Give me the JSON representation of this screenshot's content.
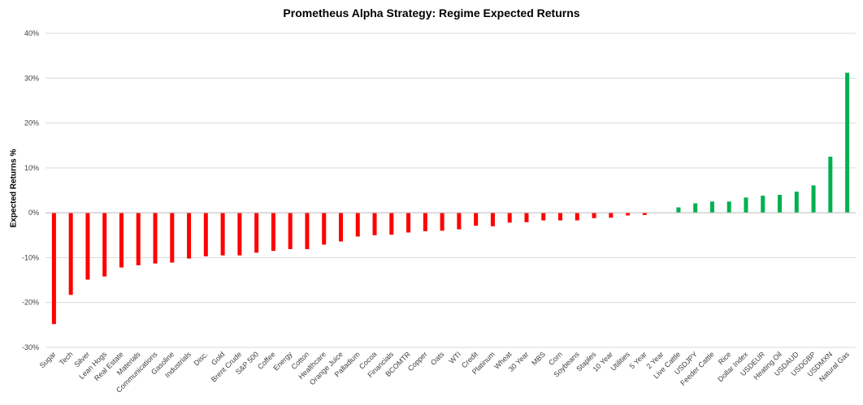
{
  "chart_data": {
    "type": "bar",
    "title": "Prometheus Alpha Strategy: Regime Expected Returns",
    "xlabel": "",
    "ylabel": "Expected Returns %",
    "ylim": [
      -30,
      40
    ],
    "yticks": [
      40,
      30,
      20,
      10,
      0,
      -10,
      -20,
      -30
    ],
    "ytick_format": "%",
    "grid": true,
    "legend": "none",
    "colors": {
      "negative": "#ff0000",
      "positive": "#00b050",
      "grid": "#d9d9d9",
      "axis": "#bfbfbf"
    },
    "categories": [
      "Sugar",
      "Tech",
      "Silver",
      "Lean Hogs",
      "Real Estate",
      "Materials",
      "Communications",
      "Gasoline",
      "Industrials",
      "Disc.",
      "Gold",
      "Brent Crude",
      "S&P 500",
      "Coffee",
      "Energy",
      "Cotton",
      "Healthcare",
      "Orange Juice",
      "Palladium",
      "Cocoa",
      "Financials",
      "BCOMTR",
      "Copper",
      "Oats",
      "WTI",
      "Credit",
      "Platinum",
      "Wheat",
      "30 Year",
      "MBS",
      "Corn",
      "Soybeans",
      "Staples",
      "10 Year",
      "Utilities",
      "5 Year",
      "2 Year",
      "Live Cattle",
      "USDJPY",
      "Feeder Cattle",
      "Rice",
      "Dollar Index",
      "USDEUR",
      "Heating Oil",
      "USDAUD",
      "USDGBP",
      "USDMXN",
      "Natural Gas"
    ],
    "values": [
      -24.8,
      -18.3,
      -14.9,
      -14.2,
      -12.2,
      -11.7,
      -11.3,
      -11.1,
      -10.2,
      -9.7,
      -9.5,
      -9.5,
      -8.9,
      -8.5,
      -8.1,
      -8.1,
      -7.1,
      -6.4,
      -5.3,
      -5.0,
      -4.9,
      -4.4,
      -4.1,
      -4.0,
      -3.7,
      -2.9,
      -3.0,
      -2.2,
      -2.1,
      -1.7,
      -1.7,
      -1.7,
      -1.2,
      -1.1,
      -0.6,
      -0.5,
      0.0,
      1.2,
      2.1,
      2.5,
      2.5,
      3.4,
      3.8,
      4.0,
      4.7,
      6.1,
      12.5,
      31.2
    ]
  }
}
